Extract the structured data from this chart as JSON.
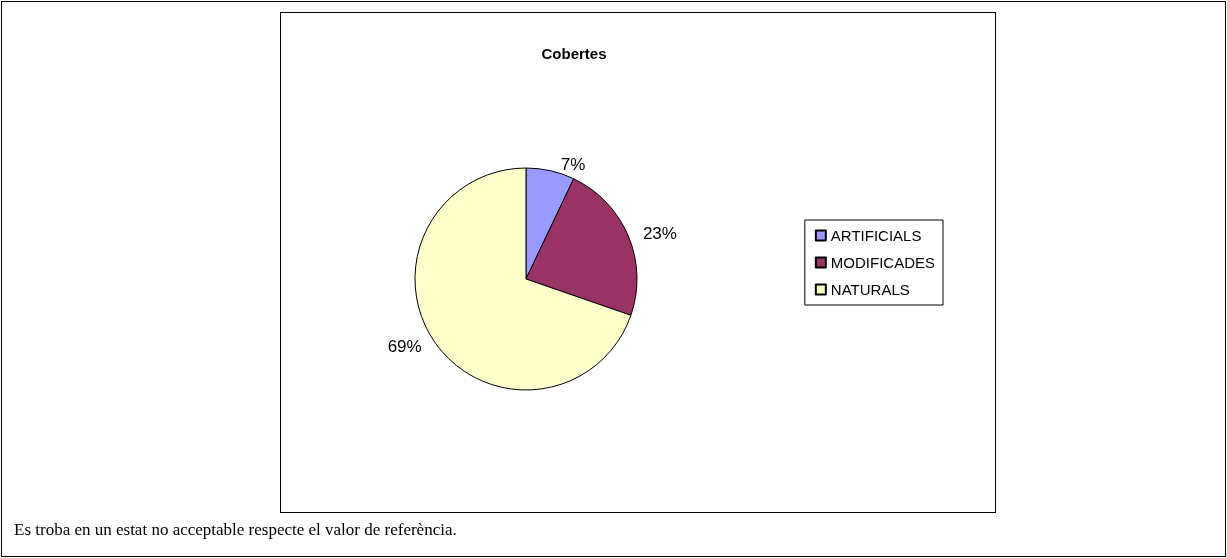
{
  "chart_data": {
    "type": "pie",
    "title": "Cobertes",
    "categories": [
      "ARTIFICIALS",
      "MODIFICADES",
      "NATURALS"
    ],
    "values": [
      7,
      23,
      69
    ],
    "colors": [
      "#9999ff",
      "#993366",
      "#ffffcc"
    ],
    "value_labels": [
      "7%",
      "23%",
      "69%"
    ],
    "legend": "right",
    "annotations": [
      "Es troba en un estat no acceptable respecte el valor de referència."
    ]
  }
}
